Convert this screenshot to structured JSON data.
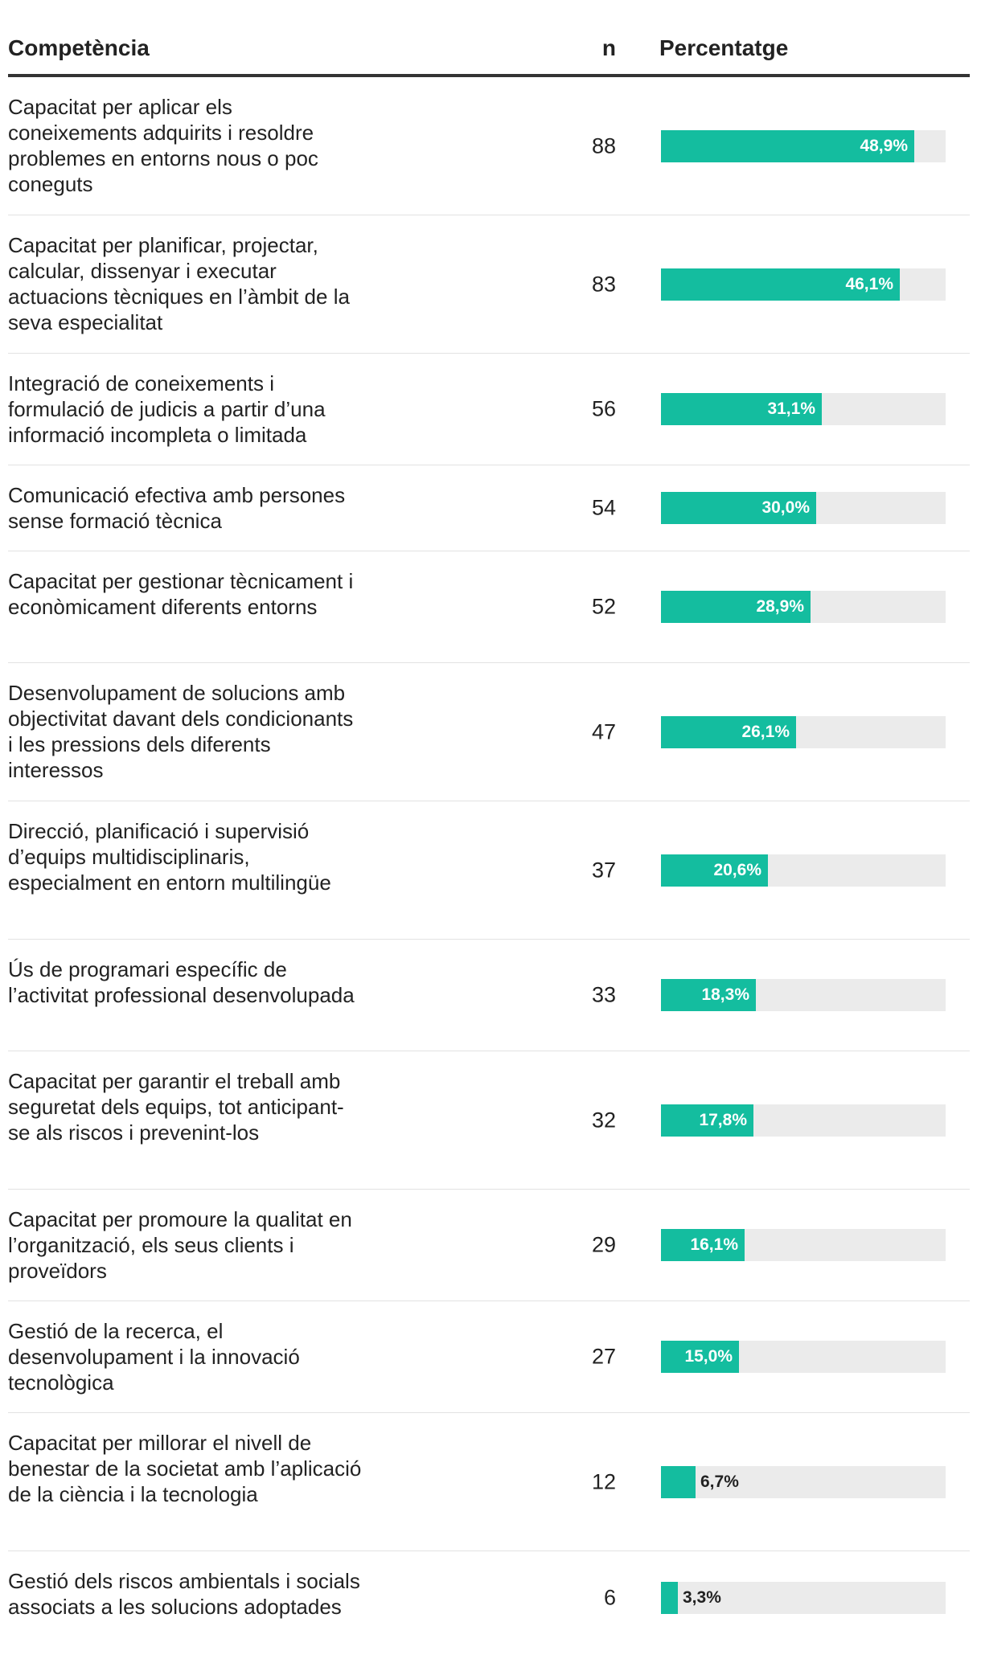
{
  "header": {
    "competence": "Competència",
    "n": "n",
    "percentage": "Percentatge"
  },
  "colors": {
    "bar": "#14bd9f",
    "track": "#ebebeb",
    "text": "#222222"
  },
  "chart_data": {
    "type": "table",
    "columns": [
      "Competència",
      "n",
      "Percentatge"
    ],
    "value_unit": "%",
    "xlim": [
      0,
      55
    ],
    "rows": [
      {
        "label": "Capacitat per aplicar els coneixements adquirits i resoldre problemes en entorns nous o poc coneguts",
        "n": "88",
        "value": 48.9,
        "value_label": "48,9%"
      },
      {
        "label": "Capacitat per planificar, projectar, calcular, dissenyar i executar actuacions tècniques en l’àmbit de la seva especialitat",
        "n": "83",
        "value": 46.1,
        "value_label": "46,1%"
      },
      {
        "label": "Integració de coneixements i formulació de judicis a partir d’una informació incompleta o limitada",
        "n": "56",
        "value": 31.1,
        "value_label": "31,1%"
      },
      {
        "label": "Comunicació efectiva amb persones sense formació tècnica",
        "n": "54",
        "value": 30.0,
        "value_label": "30,0%"
      },
      {
        "label": "Capacitat per gestionar tècnicament i econòmicament diferents entorns",
        "n": "52",
        "value": 28.9,
        "value_label": "28,9%"
      },
      {
        "label": "Desenvolupament de solucions amb objectivitat davant dels condicionants i les pressions dels diferents interessos",
        "n": "47",
        "value": 26.1,
        "value_label": "26,1%"
      },
      {
        "label": "Direcció, planificació i supervisió d’equips multidisciplinaris, especialment en entorn multilingüe",
        "n": "37",
        "value": 20.6,
        "value_label": "20,6%"
      },
      {
        "label": "Ús de programari específic de l’activitat professional desenvolupada",
        "n": "33",
        "value": 18.3,
        "value_label": "18,3%"
      },
      {
        "label": "Capacitat per garantir el treball amb seguretat dels equips, tot anticipant-se als riscos i prevenint-los",
        "n": "32",
        "value": 17.8,
        "value_label": "17,8%"
      },
      {
        "label": "Capacitat per promoure la qualitat en l’organització, els seus clients i proveïdors",
        "n": "29",
        "value": 16.1,
        "value_label": "16,1%"
      },
      {
        "label": "Gestió de la recerca, el desenvolupament i la innovació tecnològica",
        "n": "27",
        "value": 15.0,
        "value_label": "15,0%"
      },
      {
        "label": "Capacitat per millorar el nivell de benestar de la societat amb l’aplicació de la ciència i la tecnologia",
        "n": "12",
        "value": 6.7,
        "value_label": "6,7%"
      },
      {
        "label": "Gestió dels riscos ambientals i socials associats a les solucions adoptades",
        "n": "6",
        "value": 3.3,
        "value_label": "3,3%"
      }
    ]
  }
}
